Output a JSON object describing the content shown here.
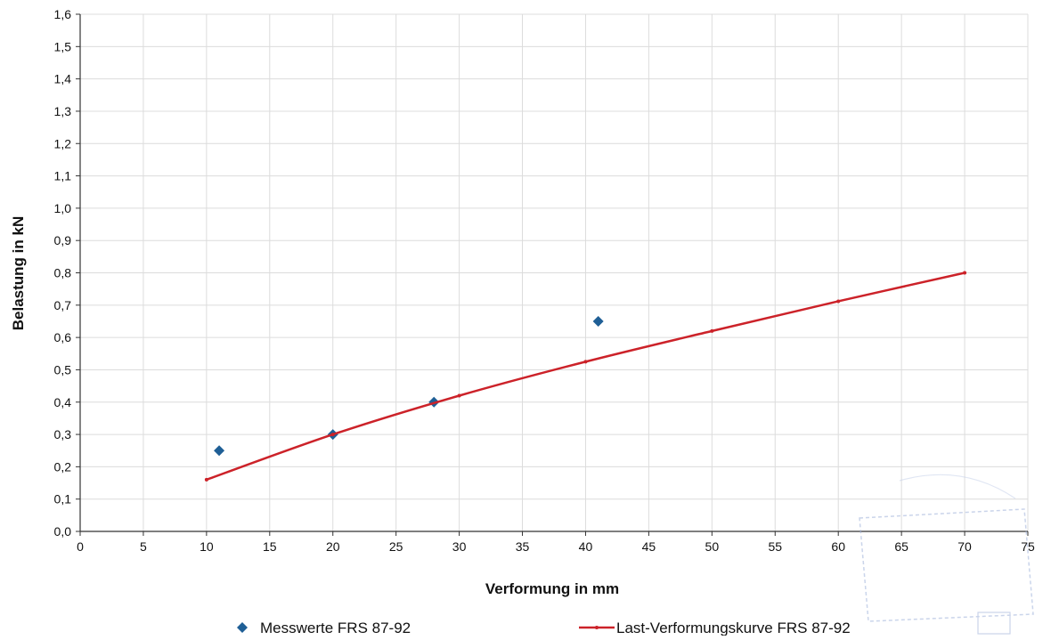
{
  "chart_data": {
    "type": "scatter",
    "xlabel": "Verformung in mm",
    "ylabel": "Belastung in kN",
    "xlim": [
      0,
      75
    ],
    "ylim": [
      0,
      1.6
    ],
    "x_ticks": [
      "0",
      "5",
      "10",
      "15",
      "20",
      "25",
      "30",
      "35",
      "40",
      "45",
      "50",
      "55",
      "60",
      "65",
      "70",
      "75"
    ],
    "y_ticks": [
      "0,0",
      "0,1",
      "0,2",
      "0,3",
      "0,4",
      "0,5",
      "0,6",
      "0,7",
      "0,8",
      "0,9",
      "1,0",
      "1,1",
      "1,2",
      "1,3",
      "1,4",
      "1,5",
      "1,6"
    ],
    "grid": true,
    "legend_position": "bottom",
    "series": [
      {
        "name": "Messwerte FRS 87-92",
        "kind": "scatter",
        "marker": "diamond",
        "color": "#1f5f96",
        "points": [
          [
            11,
            0.25
          ],
          [
            20,
            0.3
          ],
          [
            28,
            0.4
          ],
          [
            41,
            0.65
          ]
        ]
      },
      {
        "name": "Last-Verformungskurve FRS 87-92",
        "kind": "line",
        "color": "#cc2229",
        "points": [
          [
            10,
            0.16
          ],
          [
            20,
            0.3
          ],
          [
            30,
            0.42
          ],
          [
            40,
            0.525
          ],
          [
            50,
            0.62
          ],
          [
            60,
            0.712
          ],
          [
            70,
            0.8
          ]
        ]
      }
    ]
  }
}
